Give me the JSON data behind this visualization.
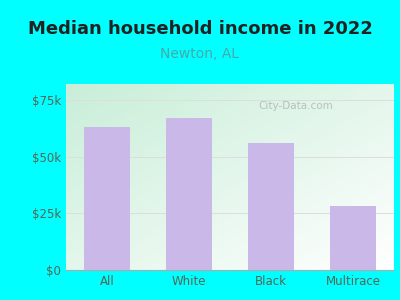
{
  "title": "Median household income in 2022",
  "subtitle": "Newton, AL",
  "categories": [
    "All",
    "White",
    "Black",
    "Multirace"
  ],
  "values": [
    63000,
    67000,
    56000,
    28000
  ],
  "bar_color": "#c9b8e8",
  "title_fontsize": 13,
  "subtitle_fontsize": 10,
  "title_color": "#222222",
  "subtitle_color": "#44aaaa",
  "yticks": [
    0,
    25000,
    50000,
    75000
  ],
  "ytick_labels": [
    "$0",
    "$25k",
    "$50k",
    "$75k"
  ],
  "ylim": [
    0,
    82000
  ],
  "background_outer": "#00ffff",
  "tick_color": "#556655",
  "watermark": "City-Data.com",
  "grid_color": "#dddddd"
}
